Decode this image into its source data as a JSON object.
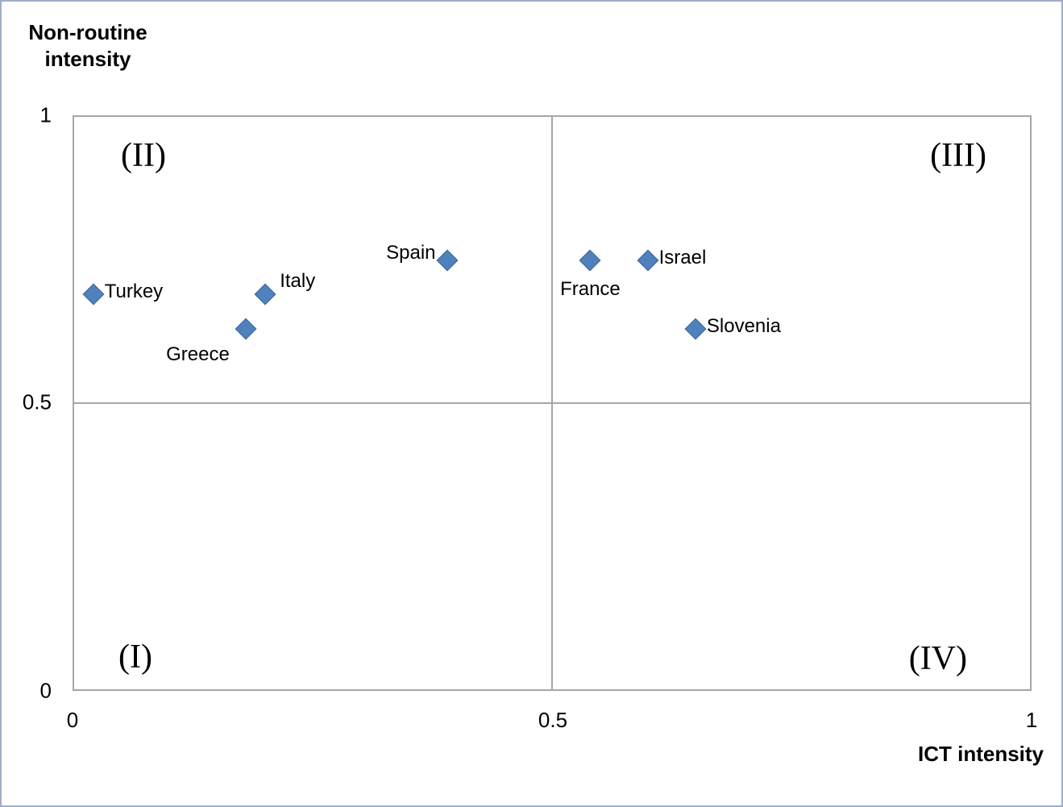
{
  "chart_data": {
    "type": "scatter",
    "title": "",
    "xlabel": "ICT intensity",
    "ylabel_line1": "Non-routine",
    "ylabel_line2": "intensity",
    "xlim": [
      0,
      1
    ],
    "ylim": [
      0,
      1
    ],
    "x_ticks": [
      "0",
      "0.5",
      "1"
    ],
    "y_ticks": [
      "1",
      "0.5",
      "0"
    ],
    "legend": "none",
    "grid": "quadrant dividers at x=0.5 and y=0.5",
    "marker": "diamond",
    "marker_color": "#4F81BD",
    "points": [
      {
        "label": "Turkey",
        "x": 0.02,
        "y": 0.69,
        "label_position": "right"
      },
      {
        "label": "Greece",
        "x": 0.18,
        "y": 0.63,
        "label_position": "below-left"
      },
      {
        "label": "Italy",
        "x": 0.2,
        "y": 0.69,
        "label_position": "above-right"
      },
      {
        "label": "Spain",
        "x": 0.39,
        "y": 0.75,
        "label_position": "left"
      },
      {
        "label": "France",
        "x": 0.54,
        "y": 0.75,
        "label_position": "below"
      },
      {
        "label": "Israel",
        "x": 0.6,
        "y": 0.75,
        "label_position": "right"
      },
      {
        "label": "Slovenia",
        "x": 0.65,
        "y": 0.63,
        "label_position": "right"
      }
    ],
    "quadrant_labels": [
      {
        "text": "(I)",
        "position": "bottom-left"
      },
      {
        "text": "(II)",
        "position": "top-left"
      },
      {
        "text": "(III)",
        "position": "top-right"
      },
      {
        "text": "(IV)",
        "position": "bottom-right"
      }
    ]
  },
  "colors": {
    "marker": "#4F81BD",
    "axis_line": "#A6A6A6",
    "outer_border": "#9DAFC5",
    "text": "#000000",
    "background": "#FFFFFF"
  }
}
